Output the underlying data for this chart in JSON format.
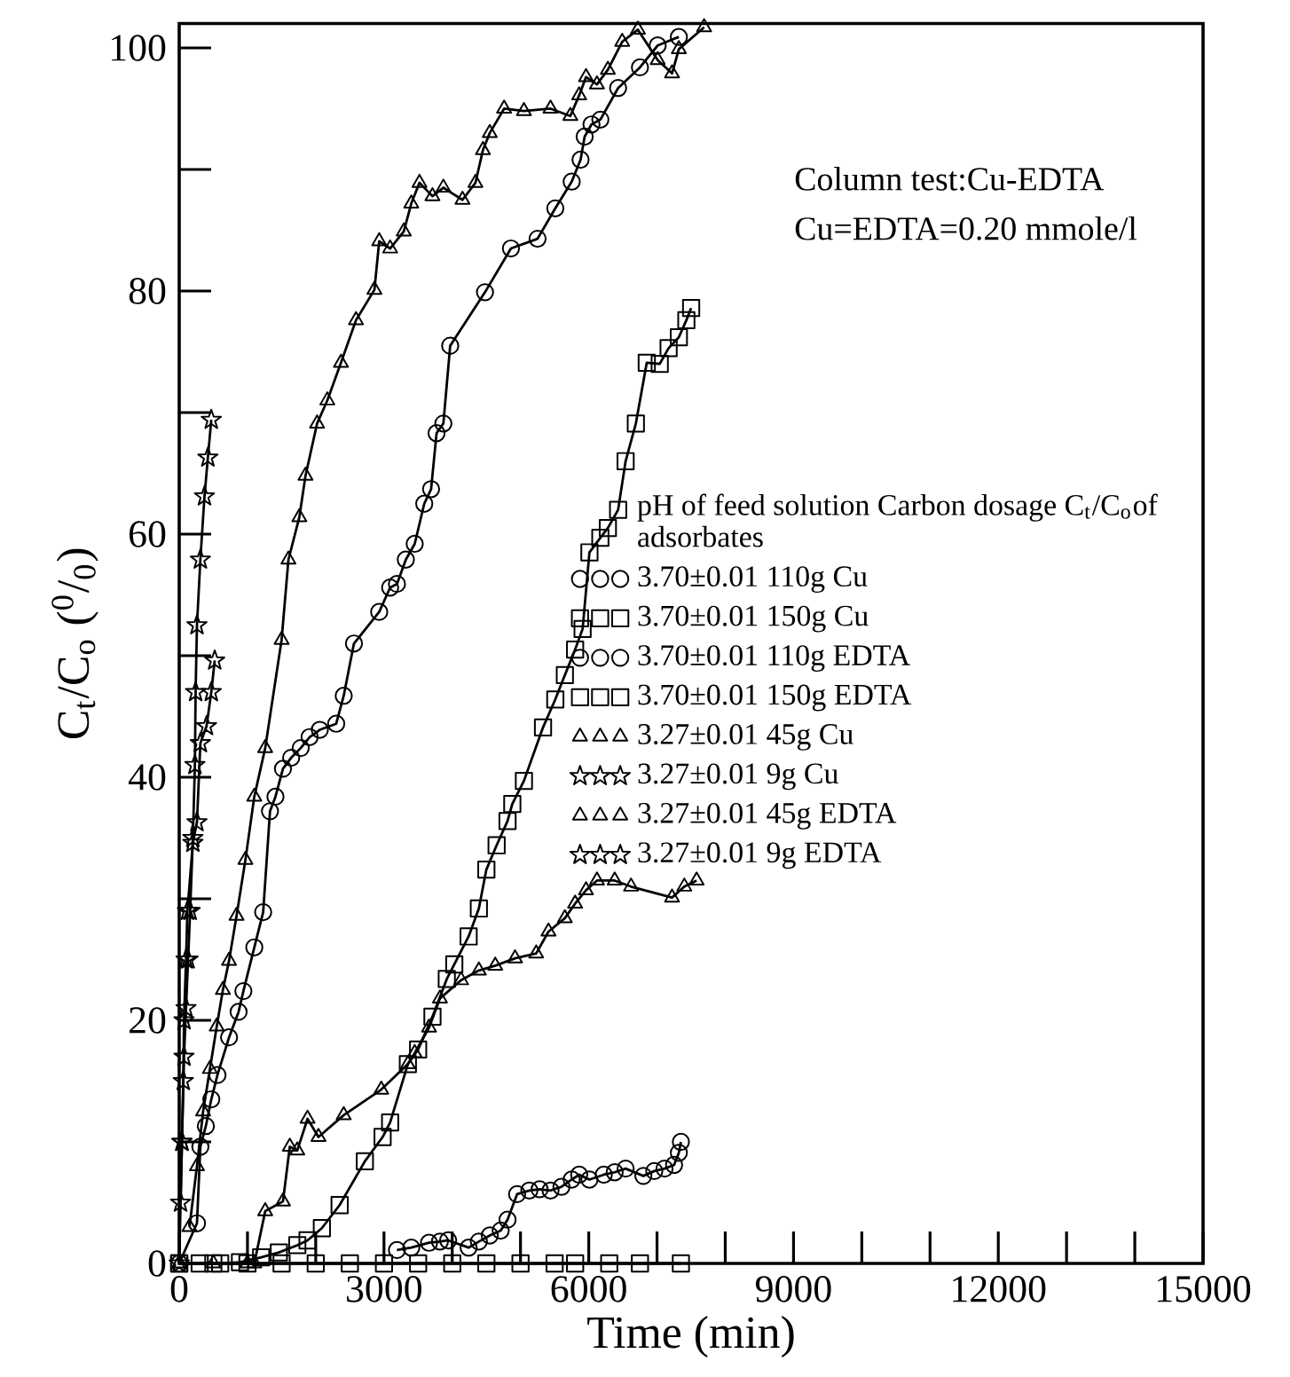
{
  "chart_data": {
    "type": "line",
    "xlabel": "Time (min)",
    "ylabel": "C$_{t}$/C$_{o}$ ($^{0}$/$_{0}$)",
    "xlim": [
      0,
      15000
    ],
    "ylim": [
      0,
      102
    ],
    "xticks": [
      0,
      3000,
      6000,
      9000,
      12000,
      15000
    ],
    "yticks": [
      0,
      20,
      40,
      60,
      80,
      100
    ],
    "grid": false,
    "legend": "right",
    "line_style": "solid",
    "legend_title": "pH of feed solution Carbon dosage C$_{t}$/C$_{o}$of adsorbates",
    "annotations": [
      "Column test:Cu-EDTA",
      "Cu=EDTA=0.20 mmole/l"
    ],
    "series": [
      {
        "name": "3.70±0.01 110g Cu",
        "color": "#000000",
        "marker": "circle",
        "x": [
          0,
          260,
          310,
          390,
          470,
          560,
          730,
          870,
          940,
          1100,
          1230,
          1330,
          1410,
          1520,
          1640,
          1780,
          1910,
          2060,
          2300,
          2410,
          2560,
          2930,
          3090,
          3190,
          3320,
          3450,
          3590,
          3690,
          3770,
          3870,
          3970,
          4480,
          4860,
          5250,
          5510,
          5750,
          5880,
          5940,
          6040,
          6170,
          6430,
          6750,
          7010,
          7320
        ],
        "values": [
          0,
          3.3,
          9.6,
          11.3,
          13.5,
          15.5,
          18.6,
          20.7,
          22.4,
          26,
          28.9,
          37.2,
          38.4,
          40.7,
          41.6,
          42.4,
          43.3,
          43.9,
          44.4,
          46.7,
          51,
          53.6,
          55.6,
          55.9,
          57.9,
          59.2,
          62.5,
          63.7,
          68.3,
          69.1,
          75.5,
          79.9,
          83.5,
          84.3,
          86.8,
          89,
          90.8,
          92.7,
          93.7,
          94.1,
          96.7,
          98.4,
          100.2,
          100.9
        ]
      },
      {
        "name": "3.70±0.01 150g Cu",
        "color": "#000000",
        "marker": "square",
        "x": [
          0,
          300,
          600,
          890,
          1200,
          1460,
          1730,
          1880,
          2090,
          2350,
          2720,
          2980,
          3090,
          3350,
          3500,
          3710,
          3920,
          4030,
          4240,
          4390,
          4500,
          4650,
          4810,
          4880,
          5050,
          5330,
          5510,
          5650,
          5800,
          5910,
          6010,
          6170,
          6280,
          6430,
          6540,
          6690,
          6850,
          7040,
          7170,
          7320,
          7430,
          7500
        ],
        "values": [
          0,
          0,
          0,
          0.1,
          0.5,
          0.9,
          1.5,
          1.9,
          2.9,
          4.8,
          8.4,
          10.4,
          11.6,
          16.4,
          17.6,
          20.3,
          23.4,
          24.6,
          26.9,
          29.2,
          32.4,
          34.4,
          36.4,
          37.8,
          39.7,
          44.1,
          46.4,
          48.4,
          50.5,
          52.2,
          58.5,
          59.7,
          60.5,
          62,
          66,
          69.1,
          74.1,
          74,
          75.3,
          76.2,
          77.6,
          78.6
        ]
      },
      {
        "name": "3.70±0.01 110g EDTA",
        "color": "#000000",
        "marker": "circle",
        "x": [
          3190,
          3400,
          3660,
          3820,
          3940,
          4240,
          4390,
          4550,
          4710,
          4810,
          4950,
          5130,
          5280,
          5440,
          5600,
          5750,
          5860,
          6010,
          6220,
          6380,
          6540,
          6800,
          6960,
          7110,
          7250,
          7320,
          7350
        ],
        "values": [
          1.1,
          1.3,
          1.7,
          1.8,
          1.9,
          1.3,
          1.8,
          2.3,
          2.7,
          3.6,
          5.7,
          6,
          6.1,
          6,
          6.3,
          6.9,
          7.3,
          6.9,
          7.3,
          7.5,
          7.8,
          7.2,
          7.6,
          7.8,
          8.1,
          9.1,
          10
        ]
      },
      {
        "name": "3.70±0.01 150g EDTA",
        "color": "#000000",
        "marker": "square",
        "x": [
          0,
          500,
          1000,
          1500,
          2000,
          2500,
          3000,
          3500,
          4000,
          4500,
          5000,
          5500,
          5800,
          6300,
          6750,
          7350
        ],
        "values": [
          0,
          0,
          0,
          0,
          0,
          0,
          0,
          0,
          0,
          0,
          0,
          0,
          0,
          0,
          0,
          0
        ]
      },
      {
        "name": "3.27±0.01 45g Cu",
        "color": "#000000",
        "marker": "triangle",
        "x": [
          150,
          260,
          350,
          450,
          550,
          640,
          730,
          840,
          970,
          1100,
          1260,
          1500,
          1600,
          1760,
          1850,
          2020,
          2170,
          2370,
          2590,
          2860,
          2930,
          3090,
          3290,
          3400,
          3520,
          3710,
          3870,
          4150,
          4340,
          4450,
          4550,
          4760,
          5050,
          5440,
          5730,
          5860,
          5960,
          6120,
          6280,
          6490,
          6720,
          7010,
          7220,
          7320,
          7690
        ],
        "values": [
          3,
          8,
          12.5,
          16,
          19.5,
          22.5,
          24.9,
          28.6,
          33.2,
          38.4,
          42.4,
          51.3,
          57.9,
          61.4,
          64.8,
          69.1,
          71,
          74.1,
          77.6,
          80.1,
          84.1,
          83.5,
          84.9,
          87.2,
          88.9,
          87.8,
          88.5,
          87.5,
          88.9,
          91.6,
          93,
          95,
          94.8,
          95,
          94.4,
          96.1,
          97.6,
          97,
          98.2,
          100.5,
          101.5,
          99,
          97.9,
          99.9,
          101.7
        ]
      },
      {
        "name": "3.27±0.01 9g Cu",
        "color": "#000000",
        "marker": "star",
        "x": [
          0,
          40,
          70,
          100,
          130,
          160,
          200,
          230,
          240,
          260,
          310,
          370,
          420,
          470
        ],
        "values": [
          0,
          10,
          17,
          21,
          25,
          29,
          35,
          41,
          47,
          52.5,
          57.9,
          63.1,
          66.3,
          69.4
        ]
      },
      {
        "name": "3.27±0.01 45g EDTA",
        "color": "#000000",
        "marker": "triangle",
        "x": [
          0,
          500,
          1000,
          1100,
          1260,
          1520,
          1620,
          1730,
          1880,
          2040,
          2410,
          2960,
          3350,
          3450,
          3660,
          3820,
          4130,
          4390,
          4630,
          4920,
          5230,
          5410,
          5650,
          5800,
          5960,
          6120,
          6380,
          6620,
          7220,
          7400,
          7580
        ],
        "values": [
          0,
          0,
          0,
          0,
          4.3,
          5.1,
          9.6,
          9.3,
          11.9,
          10.4,
          12.2,
          14.3,
          16.4,
          17.3,
          19.4,
          21.8,
          23.3,
          24.1,
          24.5,
          25.1,
          25.5,
          27.3,
          28.4,
          29.6,
          30.7,
          31.5,
          31.5,
          31,
          30.1,
          31,
          31.5
        ]
      },
      {
        "name": "3.27±0.01 9g EDTA",
        "color": "#000000",
        "marker": "star",
        "x": [
          20,
          40,
          60,
          70,
          100,
          120,
          200,
          260,
          310,
          400,
          470,
          520
        ],
        "values": [
          5,
          10,
          15,
          20,
          25,
          29,
          34.6,
          36.3,
          42.8,
          44.2,
          47,
          49.6
        ]
      }
    ]
  }
}
